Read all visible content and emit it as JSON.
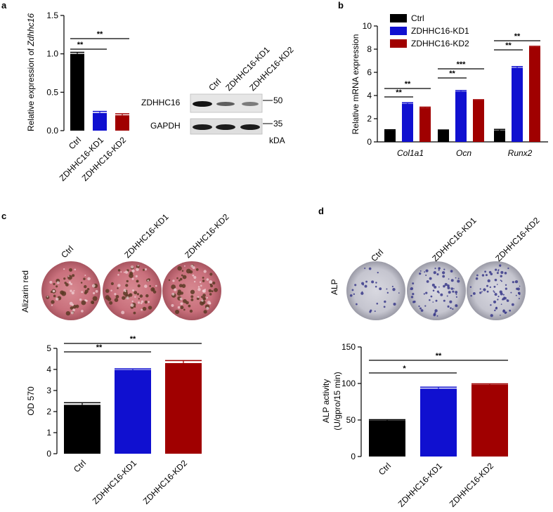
{
  "colors": {
    "ctrl": "#000000",
    "kd1": "#1010d0",
    "kd2": "#a00000"
  },
  "panels": {
    "a": {
      "label": "a",
      "blot": {
        "lanes": [
          "Ctrl",
          "ZDHHC16-KD1",
          "ZDHHC16-KD2"
        ],
        "rows": [
          {
            "name": "ZDHHC16",
            "marker": "50"
          },
          {
            "name": "GAPDH",
            "marker": "35"
          }
        ],
        "unit": "kDA"
      }
    },
    "b": {
      "label": "b"
    },
    "c": {
      "label": "c",
      "stain_label": "Alizarin red",
      "wells": [
        "Ctrl",
        "ZDHHC16-KD1",
        "ZDHHC16-KD2"
      ]
    },
    "d": {
      "label": "d",
      "stain_label": "ALP",
      "wells": [
        "Ctrl",
        "ZDHHC16-KD1",
        "ZDHHC16-KD2"
      ]
    }
  },
  "chart_data": [
    {
      "id": "a",
      "type": "bar",
      "categories": [
        "Ctrl",
        "ZDHHC16-KD1",
        "ZDHHC16-KD2"
      ],
      "values": [
        1.0,
        0.23,
        0.2
      ],
      "errors": [
        0.02,
        0.02,
        0.02
      ],
      "ylabel_prefix": "Relative expression of ",
      "ylabel_gene": "Zdhhc16",
      "ylim": [
        0,
        1.5
      ],
      "yticks": [
        "0.0",
        "0.5",
        "1.0",
        "1.5"
      ],
      "significance": [
        {
          "from": "Ctrl",
          "to": "ZDHHC16-KD1",
          "label": "**"
        },
        {
          "from": "Ctrl",
          "to": "ZDHHC16-KD2",
          "label": "**"
        }
      ]
    },
    {
      "id": "b",
      "type": "bar",
      "categories": [
        "Col1a1",
        "Ocn",
        "Runx2"
      ],
      "series": [
        {
          "name": "Ctrl",
          "values": [
            1.0,
            1.0,
            1.0
          ],
          "errors": [
            0.05,
            0.03,
            0.08
          ]
        },
        {
          "name": "ZDHHC16-KD1",
          "values": [
            3.3,
            4.35,
            6.4
          ],
          "errors": [
            0.08,
            0.08,
            0.1
          ]
        },
        {
          "name": "ZDHHC16-KD2",
          "values": [
            2.95,
            3.6,
            8.2
          ],
          "errors": [
            0.05,
            0.04,
            0.05
          ]
        }
      ],
      "ylabel": "Relative mRNA expression",
      "ylim": [
        0,
        10
      ],
      "yticks": [
        "0",
        "2",
        "4",
        "6",
        "8",
        "10"
      ],
      "significance": [
        {
          "category": "Col1a1",
          "from": "Ctrl",
          "to": "ZDHHC16-KD1",
          "label": "**"
        },
        {
          "category": "Col1a1",
          "from": "Ctrl",
          "to": "ZDHHC16-KD2",
          "label": "**"
        },
        {
          "category": "Ocn",
          "from": "Ctrl",
          "to": "ZDHHC16-KD1",
          "label": "**"
        },
        {
          "category": "Ocn",
          "from": "Ctrl",
          "to": "ZDHHC16-KD2",
          "label": "***"
        },
        {
          "category": "Runx2",
          "from": "Ctrl",
          "to": "ZDHHC16-KD1",
          "label": "**"
        },
        {
          "category": "Runx2",
          "from": "Ctrl",
          "to": "ZDHHC16-KD2",
          "label": "**"
        }
      ]
    },
    {
      "id": "c",
      "type": "bar",
      "categories": [
        "Ctrl",
        "ZDHHC16-KD1",
        "ZDHHC16-KD2"
      ],
      "values": [
        2.32,
        3.98,
        4.3
      ],
      "errors": [
        0.1,
        0.05,
        0.12
      ],
      "ylabel": "OD 570",
      "ylim": [
        0,
        5
      ],
      "yticks": [
        "0",
        "1",
        "2",
        "3",
        "4",
        "5"
      ],
      "significance": [
        {
          "from": "Ctrl",
          "to": "ZDHHC16-KD1",
          "label": "**"
        },
        {
          "from": "Ctrl",
          "to": "ZDHHC16-KD2",
          "label": "**"
        }
      ]
    },
    {
      "id": "d",
      "type": "bar",
      "categories": [
        "Ctrl",
        "ZDHHC16-KD1",
        "ZDHHC16-KD2"
      ],
      "values": [
        49.5,
        93,
        98.5
      ],
      "errors": [
        1.0,
        2.0,
        1.0
      ],
      "ylabel_line1": "ALP activity",
      "ylabel_line2": "(U/gpro/15 min)",
      "ylim": [
        0,
        150
      ],
      "yticks": [
        "0",
        "50",
        "100",
        "150"
      ],
      "significance": [
        {
          "from": "Ctrl",
          "to": "ZDHHC16-KD1",
          "label": "*"
        },
        {
          "from": "Ctrl",
          "to": "ZDHHC16-KD2",
          "label": "**"
        }
      ]
    }
  ]
}
